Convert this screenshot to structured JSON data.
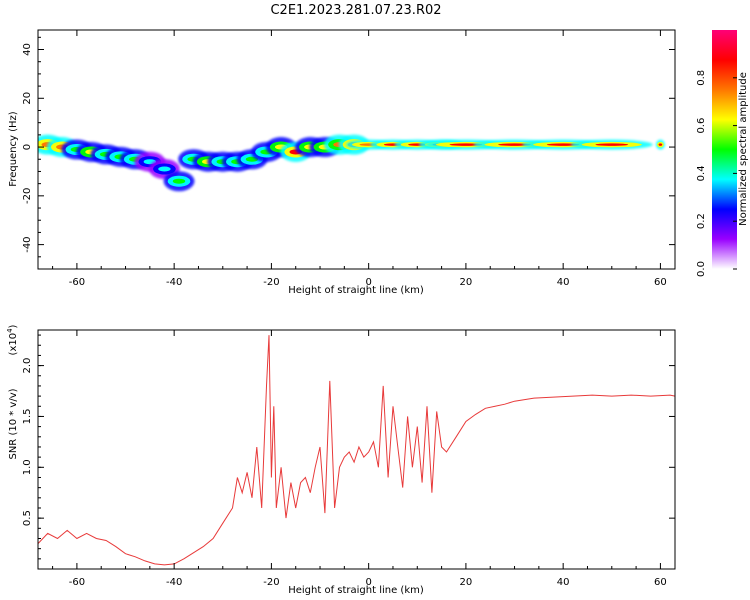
{
  "figure": {
    "title": "C2E1.2023.281.07.23.R02"
  },
  "chart_data": [
    {
      "type": "heatmap",
      "xlabel": "Height of straight line (km)",
      "ylabel": "Frequency (Hz)",
      "xlim": [
        -68,
        63
      ],
      "ylim": [
        -50,
        48
      ],
      "x_ticks": [
        -60,
        -40,
        -20,
        0,
        20,
        40,
        60
      ],
      "y_ticks": [
        -40,
        -20,
        0,
        20,
        40
      ],
      "colorbar": {
        "label": "Normalized spectral amplitude",
        "range": [
          0,
          1
        ],
        "ticks": [
          0.0,
          0.2,
          0.4,
          0.6,
          0.8
        ],
        "colors": [
          "#ffffff",
          "#9900ff",
          "#0000ff",
          "#00ffff",
          "#00ff00",
          "#ffff00",
          "#ff7700",
          "#ff0000",
          "#ff0077"
        ]
      },
      "ridge": [
        {
          "x": -66,
          "y": 1,
          "amp": 0.75
        },
        {
          "x": -63,
          "y": 0,
          "amp": 0.8
        },
        {
          "x": -60,
          "y": -1,
          "amp": 0.55
        },
        {
          "x": -57,
          "y": -2,
          "amp": 0.6
        },
        {
          "x": -54,
          "y": -3,
          "amp": 0.5
        },
        {
          "x": -51,
          "y": -4,
          "amp": 0.45
        },
        {
          "x": -48,
          "y": -5,
          "amp": 0.5
        },
        {
          "x": -45,
          "y": -6,
          "amp": 0.4
        },
        {
          "x": -42,
          "y": -9,
          "amp": 0.35
        },
        {
          "x": -39,
          "y": -14,
          "amp": 0.45
        },
        {
          "x": -36,
          "y": -5,
          "amp": 0.5
        },
        {
          "x": -33,
          "y": -6,
          "amp": 0.6
        },
        {
          "x": -30,
          "y": -6,
          "amp": 0.55
        },
        {
          "x": -27,
          "y": -6,
          "amp": 0.5
        },
        {
          "x": -24,
          "y": -5,
          "amp": 0.45
        },
        {
          "x": -21,
          "y": -2,
          "amp": 0.5
        },
        {
          "x": -18,
          "y": 0,
          "amp": 0.6
        },
        {
          "x": -15,
          "y": -2,
          "amp": 0.85
        },
        {
          "x": -12,
          "y": 0,
          "amp": 0.6
        },
        {
          "x": -9,
          "y": 0,
          "amp": 0.65
        },
        {
          "x": -6,
          "y": 1,
          "amp": 0.7
        },
        {
          "x": -3,
          "y": 1,
          "amp": 0.75
        },
        {
          "x": 0,
          "y": 1,
          "amp": 0.8
        },
        {
          "x": 5,
          "y": 1,
          "amp": 0.85
        },
        {
          "x": 10,
          "y": 1,
          "amp": 0.85
        },
        {
          "x": 15,
          "y": 1,
          "amp": 0.85
        },
        {
          "x": 20,
          "y": 1,
          "amp": 0.9
        },
        {
          "x": 30,
          "y": 1,
          "amp": 0.9
        },
        {
          "x": 40,
          "y": 1,
          "amp": 0.9
        },
        {
          "x": 50,
          "y": 1,
          "amp": 0.9
        },
        {
          "x": 60,
          "y": 1,
          "amp": 0.9
        }
      ]
    },
    {
      "type": "line",
      "xlabel": "Height of straight line (km)",
      "ylabel": "SNR (10 * v/v)",
      "y_scale_label": "(x10",
      "y_scale_exponent": "4",
      "y_scale_suffix": ")",
      "xlim": [
        -68,
        63
      ],
      "ylim": [
        0,
        2.35
      ],
      "x_ticks": [
        -60,
        -40,
        -20,
        0,
        20,
        40,
        60
      ],
      "y_ticks": [
        0.5,
        1.0,
        1.5,
        2.0
      ],
      "color": "#e83a3a",
      "series": [
        {
          "x": [
            -68,
            -66,
            -64,
            -62,
            -60,
            -58,
            -56,
            -54,
            -52,
            -50,
            -48,
            -46,
            -44,
            -42,
            -40,
            -38,
            -36,
            -34,
            -32,
            -30,
            -28,
            -27,
            -26,
            -25,
            -24,
            -23,
            -22,
            -21,
            -20.5,
            -20,
            -19.5,
            -19,
            -18,
            -17,
            -16,
            -15,
            -14,
            -13,
            -12,
            -11,
            -10,
            -9,
            -8,
            -7,
            -6,
            -5,
            -4,
            -3,
            -2,
            -1,
            0,
            1,
            2,
            3,
            4,
            5,
            6,
            7,
            8,
            9,
            10,
            11,
            12,
            13,
            14,
            15,
            16,
            18,
            20,
            22,
            24,
            26,
            28,
            30,
            34,
            38,
            42,
            46,
            50,
            54,
            58,
            62,
            63
          ],
          "y": [
            0.25,
            0.35,
            0.3,
            0.38,
            0.3,
            0.35,
            0.3,
            0.28,
            0.22,
            0.15,
            0.12,
            0.08,
            0.05,
            0.04,
            0.05,
            0.1,
            0.16,
            0.22,
            0.3,
            0.45,
            0.6,
            0.9,
            0.75,
            0.95,
            0.7,
            1.2,
            0.6,
            1.8,
            2.3,
            0.9,
            1.6,
            0.6,
            1.0,
            0.5,
            0.85,
            0.6,
            0.85,
            0.9,
            0.75,
            1.0,
            1.2,
            0.55,
            1.85,
            0.6,
            1.0,
            1.1,
            1.15,
            1.05,
            1.2,
            1.1,
            1.15,
            1.25,
            1.0,
            1.8,
            0.9,
            1.6,
            1.2,
            0.8,
            1.5,
            1.0,
            1.4,
            0.85,
            1.6,
            0.75,
            1.55,
            1.2,
            1.15,
            1.3,
            1.45,
            1.52,
            1.58,
            1.6,
            1.62,
            1.65,
            1.68,
            1.69,
            1.7,
            1.71,
            1.7,
            1.71,
            1.7,
            1.71,
            1.7
          ]
        }
      ]
    }
  ]
}
